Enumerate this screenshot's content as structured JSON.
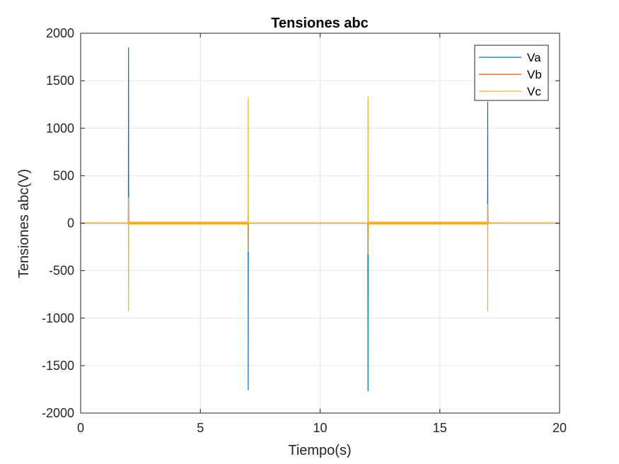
{
  "chart_data": {
    "type": "line",
    "title": "Tensiones abc",
    "xlabel": "Tiempo(s)",
    "ylabel": "Tensiones abc(V)",
    "xlim": [
      0,
      20
    ],
    "ylim": [
      -2000,
      2000
    ],
    "xticks": [
      0,
      5,
      10,
      15,
      20
    ],
    "yticks": [
      -2000,
      -1500,
      -1000,
      -500,
      0,
      500,
      1000,
      1500,
      2000
    ],
    "xtick_labels": [
      "0",
      "5",
      "10",
      "15",
      "20"
    ],
    "ytick_labels": [
      "-2000",
      "-1500",
      "-1000",
      "-500",
      "0",
      "500",
      "1000",
      "1500",
      "2000"
    ],
    "grid": true,
    "legend_position": "top-right",
    "series": [
      {
        "name": "Va",
        "color": "#0072BD",
        "x": [
          0,
          1.99,
          1.995,
          2.0,
          2.005,
          2.01,
          6.99,
          6.995,
          7.0,
          7.005,
          7.01,
          11.99,
          11.995,
          12.0,
          12.005,
          12.01,
          16.99,
          16.995,
          17.0,
          17.005,
          17.01,
          20
        ],
        "y": [
          0,
          0,
          300,
          1850,
          0,
          0,
          0,
          -320,
          -1760,
          0,
          0,
          0,
          -340,
          -1770,
          0,
          0,
          0,
          300,
          1280,
          0,
          0,
          0
        ]
      },
      {
        "name": "Vb",
        "color": "#D95319",
        "x": [
          0,
          1.99,
          2.0,
          2.01,
          6.99,
          7.0,
          7.01,
          11.99,
          12.0,
          12.01,
          16.99,
          17.0,
          17.01,
          20
        ],
        "y": [
          0,
          0,
          200,
          0,
          0,
          -150,
          0,
          0,
          -150,
          0,
          0,
          200,
          0,
          0
        ]
      },
      {
        "name": "Vc",
        "color": "#EDB120",
        "x": [
          0,
          1.99,
          1.995,
          2.0,
          2.005,
          2.01,
          6.99,
          6.995,
          7.0,
          7.005,
          7.01,
          11.99,
          11.995,
          12.0,
          12.005,
          12.01,
          16.99,
          16.995,
          17.0,
          17.005,
          17.01,
          20
        ],
        "y": [
          0,
          0,
          270,
          -930,
          0,
          0,
          0,
          100,
          1320,
          -300,
          0,
          0,
          -330,
          1330,
          0,
          0,
          0,
          200,
          -930,
          0,
          0,
          0
        ]
      }
    ],
    "ripple_intervals": [
      [
        2.0,
        7.0
      ],
      [
        12.0,
        17.0
      ]
    ],
    "ripple_amplitude": 15
  }
}
